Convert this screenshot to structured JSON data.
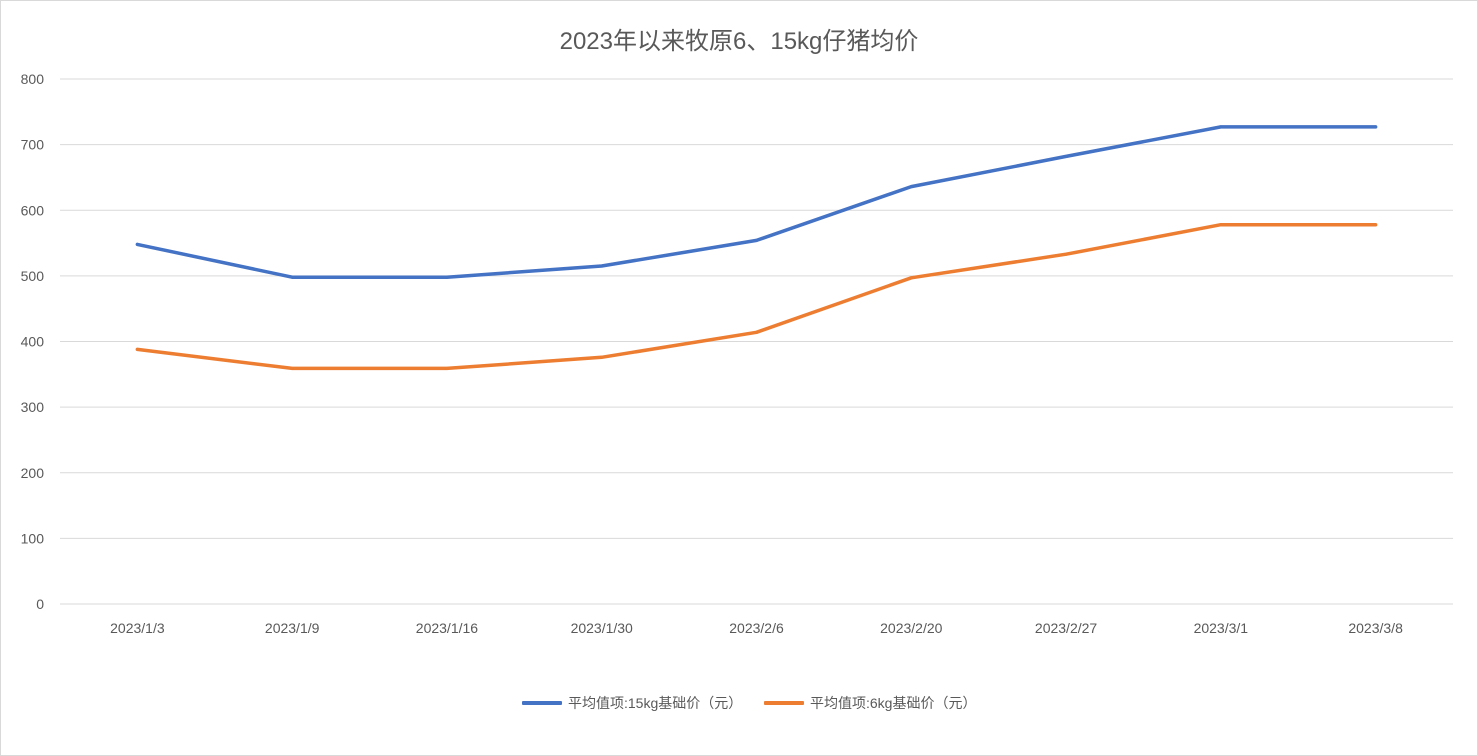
{
  "chart_data": {
    "type": "line",
    "title": "2023年以来牧原6、15kg仔猪均价",
    "categories": [
      "2023/1/3",
      "2023/1/9",
      "2023/1/16",
      "2023/1/30",
      "2023/2/6",
      "2023/2/20",
      "2023/2/27",
      "2023/3/1",
      "2023/3/8"
    ],
    "series": [
      {
        "name": "平均值项:15kg基础价（元）",
        "color": "#4472C4",
        "values": [
          548,
          498,
          498,
          515,
          554,
          636,
          682,
          727,
          727
        ]
      },
      {
        "name": "平均值项:6kg基础价（元）",
        "color": "#ED7D31",
        "values": [
          388,
          359,
          359,
          376,
          414,
          497,
          533,
          578,
          578
        ]
      }
    ],
    "ylim": [
      0,
      800
    ],
    "yticks": [
      0,
      100,
      200,
      300,
      400,
      500,
      600,
      700,
      800
    ],
    "grid": true,
    "legend_position": "bottom"
  }
}
